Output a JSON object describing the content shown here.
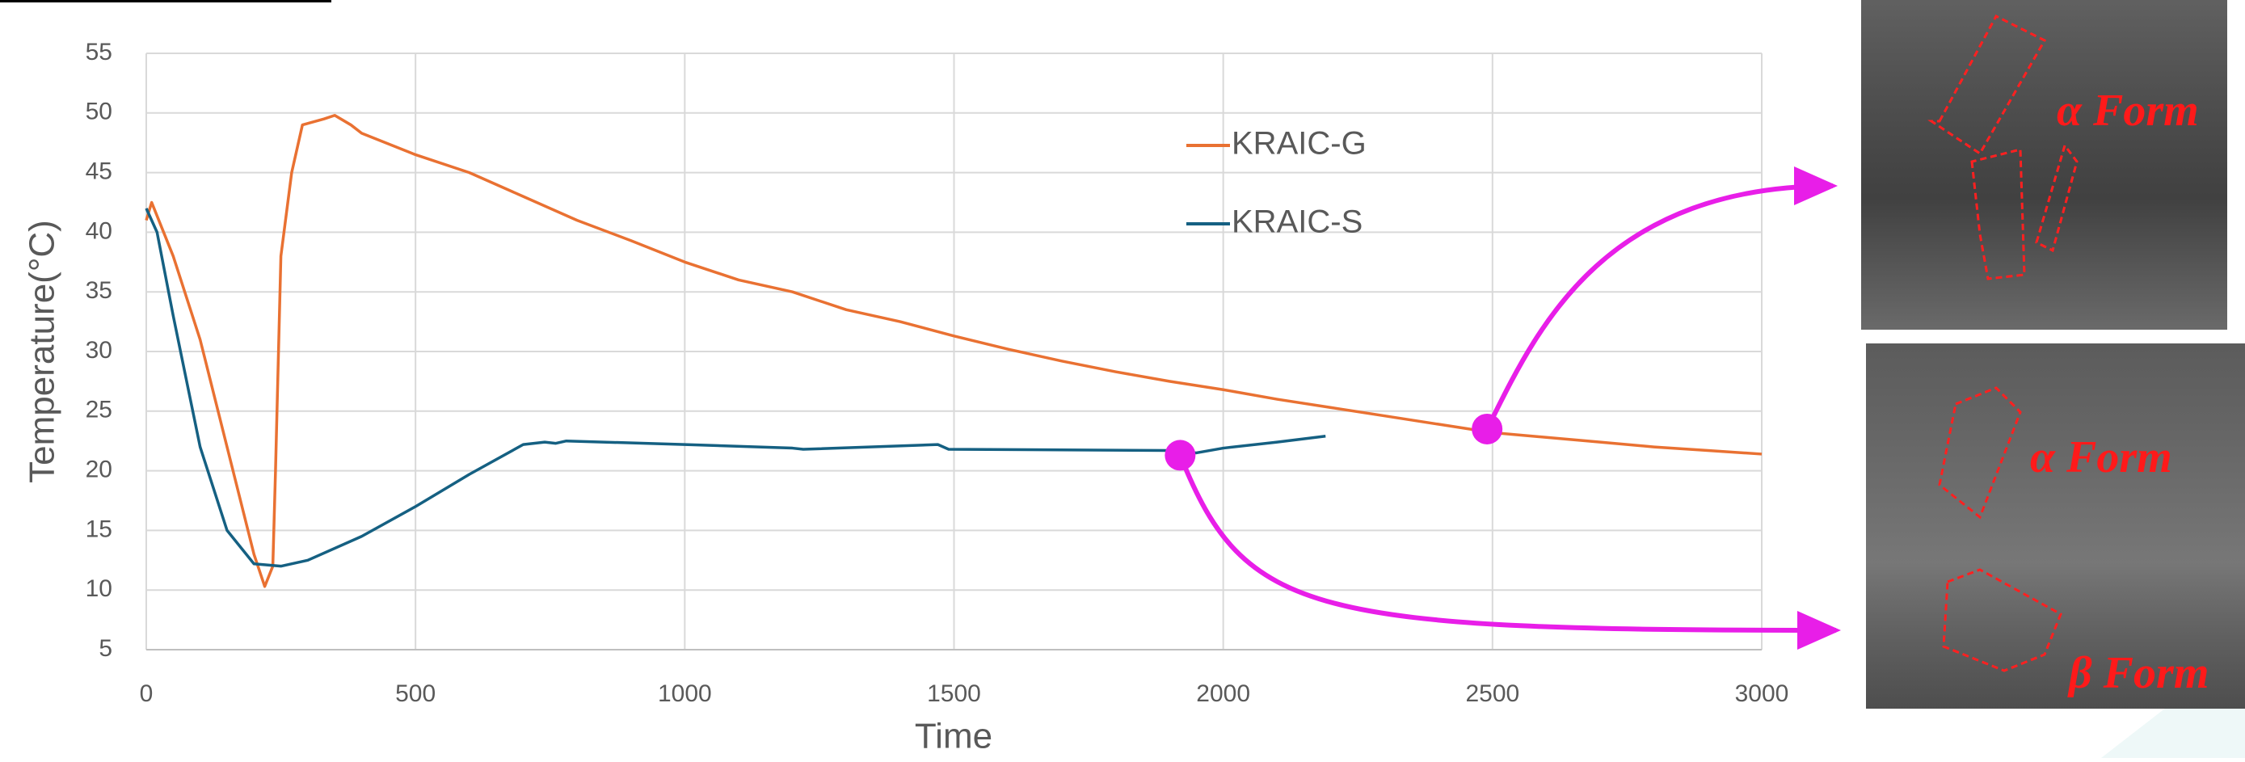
{
  "chart_data": {
    "type": "line",
    "xlabel": "Time",
    "ylabel": "Temperature(°C)",
    "xlim": [
      0,
      3000
    ],
    "ylim": [
      5,
      55
    ],
    "xticks": [
      0,
      500,
      1000,
      1500,
      2000,
      2500,
      3000
    ],
    "yticks": [
      5,
      10,
      15,
      20,
      25,
      30,
      35,
      40,
      45,
      50,
      55
    ],
    "grid": true,
    "legend": "upper right",
    "series": [
      {
        "name": "KRAIC-G",
        "color": "#e97132",
        "x": [
          0,
          10,
          50,
          100,
          150,
          200,
          220,
          235,
          240,
          250,
          270,
          290,
          330,
          350,
          380,
          400,
          500,
          600,
          700,
          800,
          900,
          1000,
          1100,
          1200,
          1300,
          1400,
          1500,
          1600,
          1700,
          1800,
          1900,
          2000,
          2100,
          2200,
          2300,
          2400,
          2500,
          2600,
          2700,
          2800,
          2900,
          3000
        ],
        "values": [
          41,
          42.5,
          38,
          31,
          22,
          13,
          10.3,
          12,
          20,
          38,
          45,
          49,
          49.5,
          49.8,
          49,
          48.3,
          46.5,
          45,
          43,
          41,
          39.3,
          37.5,
          36,
          35,
          33.5,
          32.5,
          31.3,
          30.2,
          29.2,
          28.3,
          27.5,
          26.8,
          26,
          25.3,
          24.6,
          23.9,
          23.2,
          22.8,
          22.4,
          22,
          21.7,
          21.4
        ]
      },
      {
        "name": "KRAIC-S",
        "color": "#156082",
        "x": [
          0,
          20,
          50,
          100,
          150,
          200,
          250,
          300,
          400,
          500,
          600,
          700,
          740,
          760,
          780,
          1000,
          1200,
          1220,
          1470,
          1490,
          1900,
          1950,
          2000,
          2100,
          2190
        ],
        "values": [
          42,
          40,
          33,
          22,
          15,
          12.2,
          12,
          12.5,
          14.5,
          17,
          19.7,
          22.2,
          22.4,
          22.3,
          22.5,
          22.2,
          21.9,
          21.8,
          22.2,
          21.8,
          21.7,
          21.5,
          21.9,
          22.4,
          22.9
        ]
      }
    ],
    "highlights": [
      {
        "x": 2490,
        "y": 23.5
      },
      {
        "x": 1920,
        "y": 21.3
      }
    ],
    "annotations": [
      "α Form",
      "α Form",
      "β Form"
    ]
  }
}
